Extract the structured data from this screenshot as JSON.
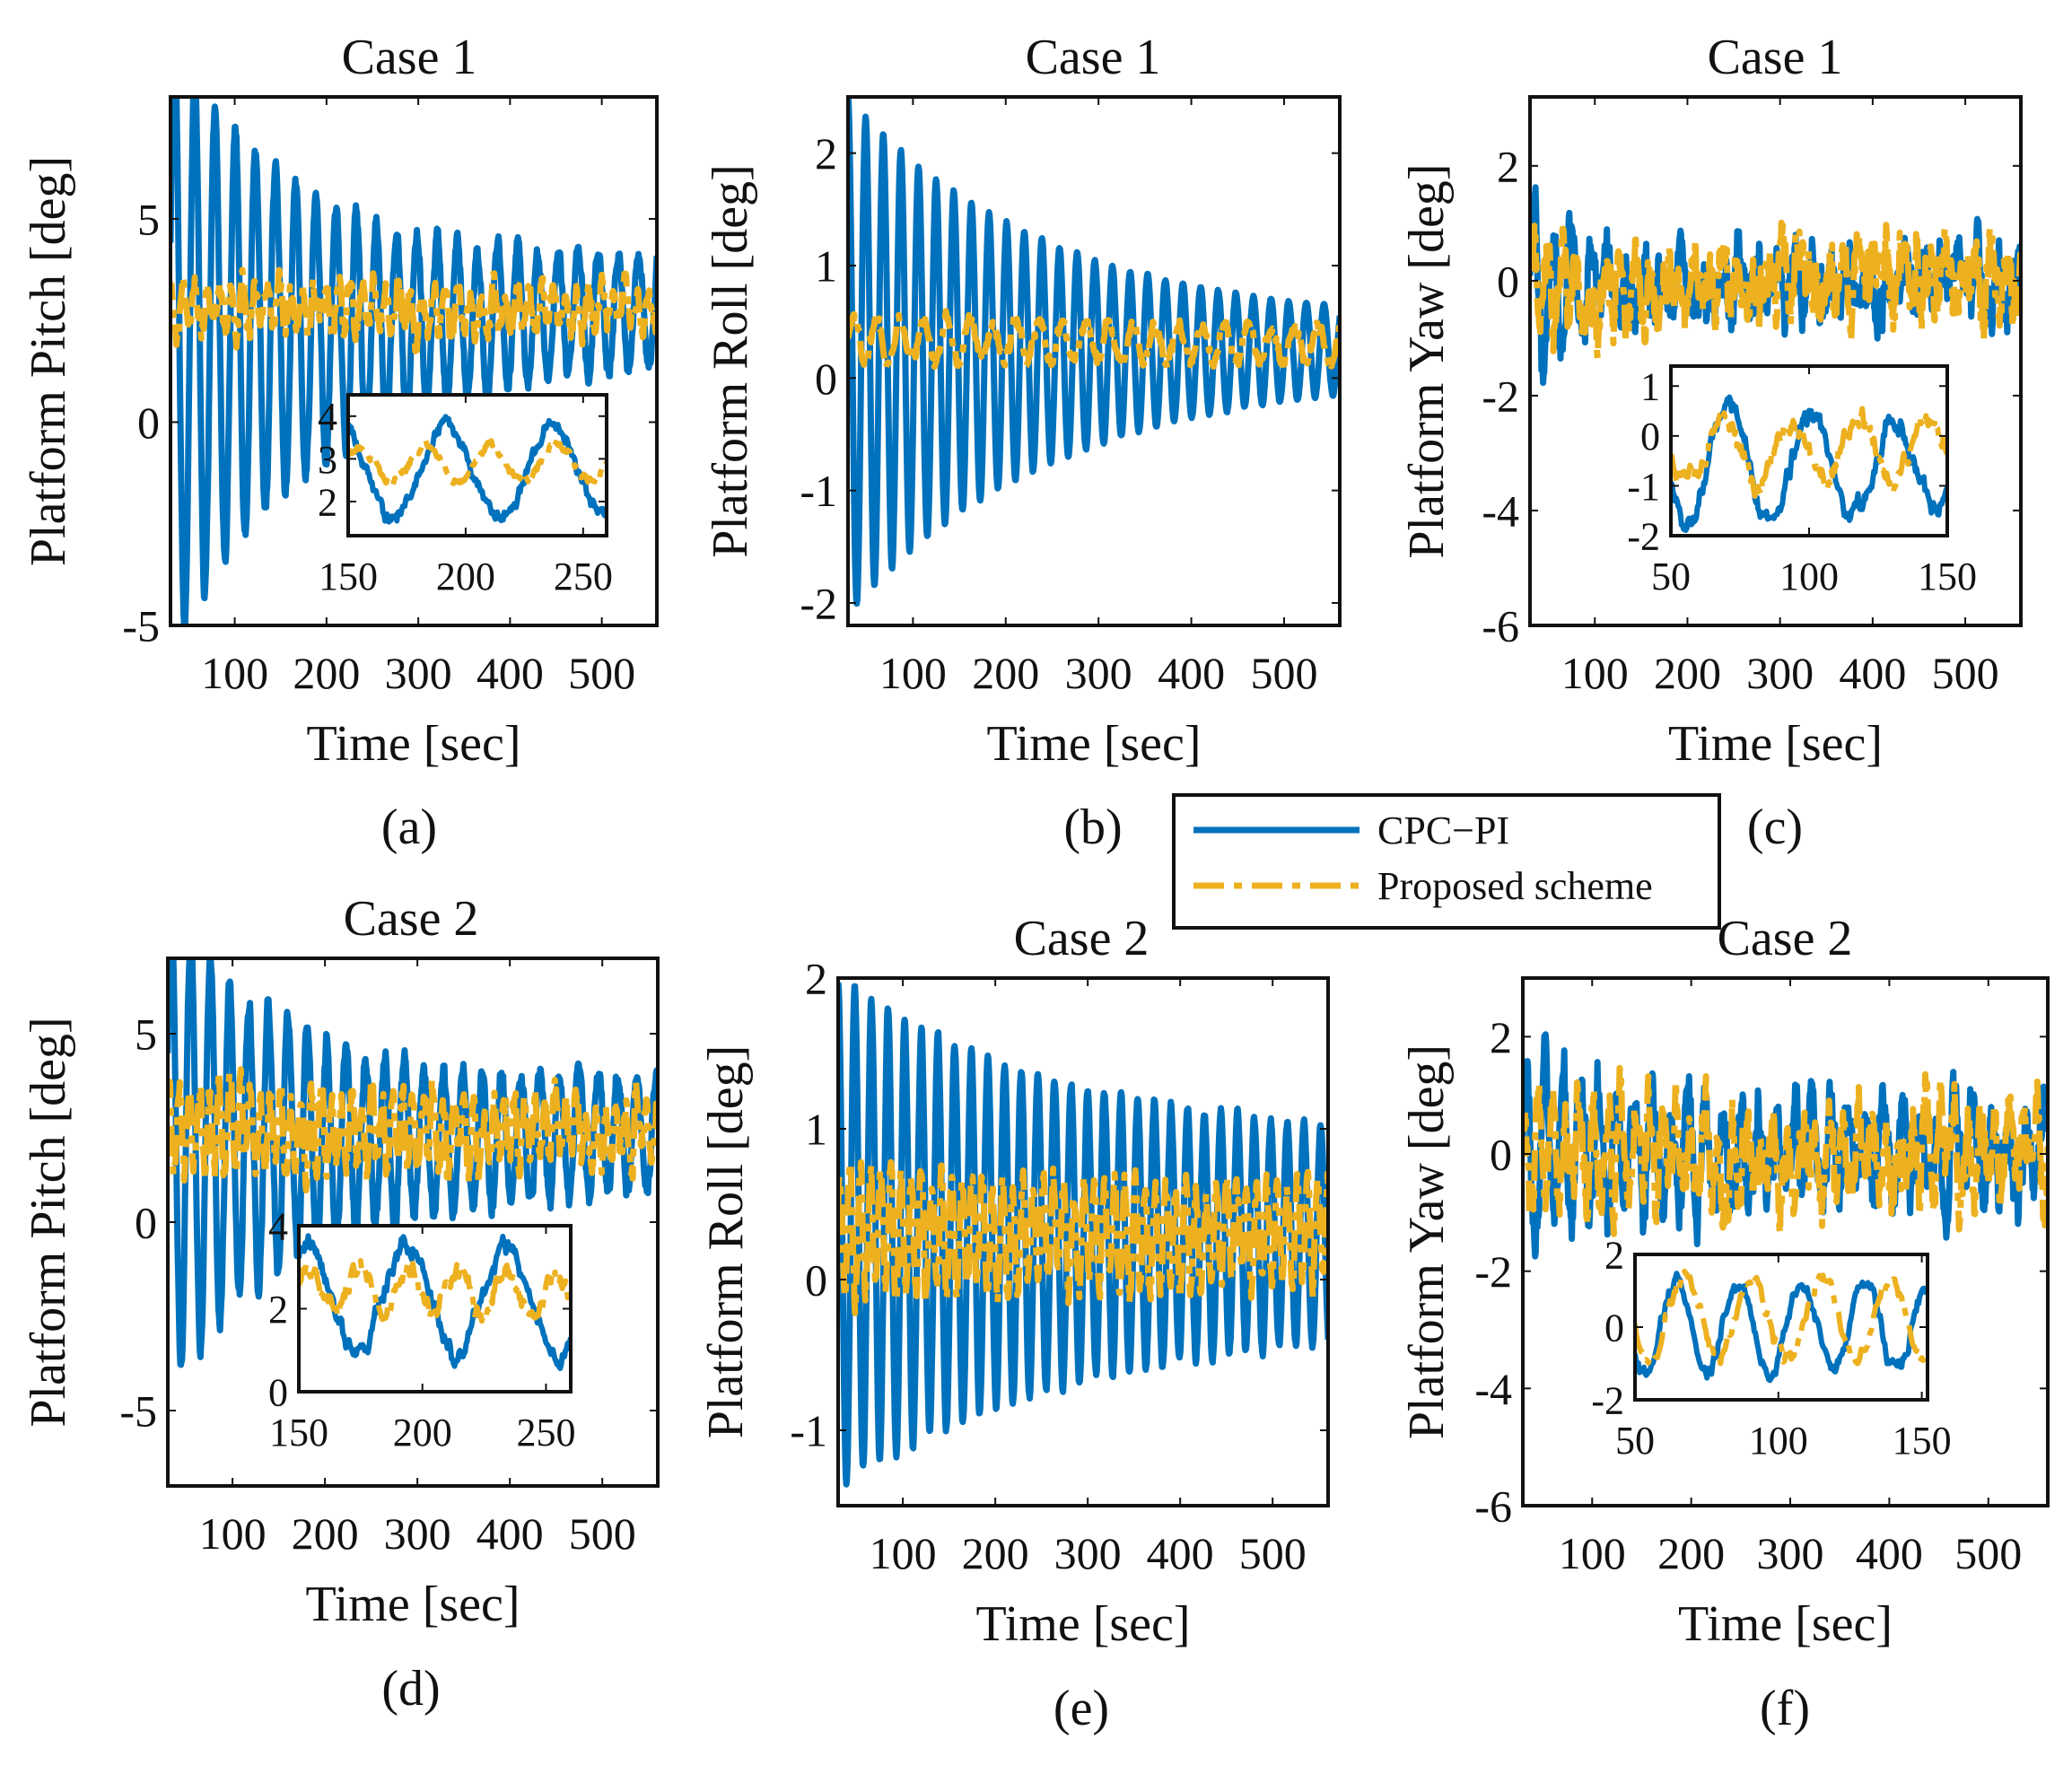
{
  "legend": {
    "entries": [
      {
        "label": "CPC−PI",
        "color": "#0072BD",
        "style": "solid"
      },
      {
        "label": "Proposed scheme",
        "color": "#EDB120",
        "style": "dashdot"
      }
    ]
  },
  "chart_data": [
    {
      "id": "a",
      "type": "line",
      "panel_label": "(a)",
      "title": "Case 1",
      "xlabel": "Time [sec]",
      "ylabel": "Platform Pitch [deg]",
      "xlim": [
        30,
        560
      ],
      "ylim": [
        -5,
        8
      ],
      "xticks": [
        100,
        200,
        300,
        400,
        500
      ],
      "yticks": [
        -5,
        0,
        5
      ],
      "series": [
        {
          "name": "CPC−PI",
          "gen": {
            "start": 2.0,
            "end": 2.8,
            "amp0": 7.5,
            "amp1": 1.2,
            "decay": 150,
            "period": 22,
            "noise": 0.35,
            "phase": 0.3,
            "seed": 11
          }
        },
        {
          "name": "Proposed scheme",
          "gen": {
            "start": 2.8,
            "end": 2.8,
            "amp0": 0.6,
            "amp1": 0.5,
            "decay": 200,
            "period": 13,
            "noise": 0.45,
            "phase": 1.1,
            "seed": 12
          }
        }
      ],
      "inset": {
        "xlim": [
          150,
          260
        ],
        "ylim": [
          1.2,
          4.5
        ],
        "xticks": [
          150,
          200,
          250
        ],
        "yticks": [
          2,
          3,
          4
        ],
        "series": [
          {
            "name": "CPC−PI",
            "gen": {
              "start": 2.7,
              "end": 2.7,
              "amp0": 1.1,
              "amp1": 1.1,
              "decay": 100,
              "period": 45,
              "noise": 0.25,
              "phase": 2.0,
              "seed": 13
            }
          },
          {
            "name": "Proposed scheme",
            "gen": {
              "start": 2.9,
              "end": 2.9,
              "amp0": 0.4,
              "amp1": 0.4,
              "decay": 100,
              "period": 28,
              "noise": 0.15,
              "phase": 0.5,
              "seed": 14
            }
          }
        ]
      }
    },
    {
      "id": "b",
      "type": "line",
      "panel_label": "(b)",
      "title": "Case 1",
      "xlabel": "Time [sec]",
      "ylabel": "Platform Roll [deg]",
      "xlim": [
        30,
        560
      ],
      "ylim": [
        -2.2,
        2.5
      ],
      "xticks": [
        100,
        200,
        300,
        400,
        500
      ],
      "yticks": [
        -2,
        -1,
        0,
        1,
        2
      ],
      "series": [
        {
          "name": "CPC−PI",
          "gen": {
            "start": 0.2,
            "end": 0.25,
            "amp0": 2.3,
            "amp1": 0.2,
            "decay": 220,
            "period": 19,
            "noise": 0.02,
            "phase": 1.57,
            "seed": 21
          }
        },
        {
          "name": "Proposed scheme",
          "gen": {
            "start": 0.35,
            "end": 0.3,
            "amp0": 0.2,
            "amp1": 0.15,
            "decay": 200,
            "period": 25,
            "noise": 0.08,
            "phase": 0.0,
            "seed": 22
          }
        }
      ]
    },
    {
      "id": "c",
      "type": "line",
      "panel_label": "(c)",
      "title": "Case 1",
      "xlabel": "Time [sec]",
      "ylabel": "Platform Yaw [deg]",
      "xlim": [
        30,
        560
      ],
      "ylim": [
        -6,
        3.2
      ],
      "xticks": [
        100,
        200,
        300,
        400,
        500
      ],
      "yticks": [
        -6,
        -4,
        -2,
        0,
        2
      ],
      "series": [
        {
          "name": "CPC−PI",
          "gen": {
            "start": -0.2,
            "end": 0.0,
            "amp0": 2.0,
            "amp1": 0.3,
            "decay": 30,
            "period": 20,
            "noise": 0.75,
            "phase": 0.0,
            "seed": 31
          }
        },
        {
          "name": "Proposed scheme",
          "gen": {
            "start": -0.1,
            "end": 0.1,
            "amp0": 0.5,
            "amp1": 0.3,
            "decay": 60,
            "period": 16,
            "noise": 0.8,
            "phase": 0.7,
            "seed": 32
          }
        }
      ],
      "inset": {
        "xlim": [
          50,
          150
        ],
        "ylim": [
          -2,
          1.4
        ],
        "xticks": [
          50,
          100,
          150
        ],
        "yticks": [
          -2,
          -1,
          0,
          1
        ],
        "series": [
          {
            "name": "CPC−PI",
            "gen": {
              "start": -0.6,
              "end": -0.6,
              "amp0": 1.2,
              "amp1": 0.7,
              "decay": 100,
              "period": 30,
              "noise": 0.3,
              "phase": 3.5,
              "seed": 33
            }
          },
          {
            "name": "Proposed scheme",
            "gen": {
              "start": -0.3,
              "end": -0.3,
              "amp0": 0.6,
              "amp1": 0.6,
              "decay": 100,
              "period": 25,
              "noise": 0.3,
              "phase": 3.2,
              "seed": 34
            }
          }
        ]
      }
    },
    {
      "id": "d",
      "type": "line",
      "panel_label": "(d)",
      "title": "Case 2",
      "xlabel": "Time [sec]",
      "ylabel": "Platform Pitch [deg]",
      "xlim": [
        30,
        560
      ],
      "ylim": [
        -7,
        7
      ],
      "xticks": [
        100,
        200,
        300,
        400,
        500
      ],
      "yticks": [
        -5,
        0,
        5
      ],
      "series": [
        {
          "name": "CPC−PI",
          "gen": {
            "start": 2.0,
            "end": 2.3,
            "amp0": 6.5,
            "amp1": 1.5,
            "decay": 120,
            "period": 21,
            "noise": 0.45,
            "phase": 0.4,
            "seed": 41
          }
        },
        {
          "name": "Proposed scheme",
          "gen": {
            "start": 2.4,
            "end": 2.4,
            "amp0": 1.2,
            "amp1": 0.7,
            "decay": 200,
            "period": 11,
            "noise": 0.7,
            "phase": 1.0,
            "seed": 42
          }
        }
      ],
      "inset": {
        "xlim": [
          150,
          260
        ],
        "ylim": [
          0,
          4
        ],
        "xticks": [
          150,
          200,
          250
        ],
        "yticks": [
          0,
          2,
          4
        ],
        "series": [
          {
            "name": "CPC−PI",
            "gen": {
              "start": 2.2,
              "end": 2.2,
              "amp0": 1.3,
              "amp1": 1.3,
              "decay": 100,
              "period": 40,
              "noise": 0.35,
              "phase": 1.0,
              "seed": 43
            }
          },
          {
            "name": "Proposed scheme",
            "gen": {
              "start": 2.4,
              "end": 2.4,
              "amp0": 0.5,
              "amp1": 0.5,
              "decay": 100,
              "period": 20,
              "noise": 0.35,
              "phase": 0.2,
              "seed": 44
            }
          }
        ]
      }
    },
    {
      "id": "e",
      "type": "line",
      "panel_label": "(e)",
      "title": "Case 2",
      "xlabel": "Time [sec]",
      "ylabel": "Platform Roll [deg]",
      "xlim": [
        30,
        560
      ],
      "ylim": [
        -1.5,
        2
      ],
      "xticks": [
        100,
        200,
        300,
        400,
        500
      ],
      "yticks": [
        -1,
        0,
        1,
        2
      ],
      "series": [
        {
          "name": "CPC−PI",
          "gen": {
            "start": 0.3,
            "end": 0.3,
            "amp0": 1.7,
            "amp1": 0.6,
            "decay": 250,
            "period": 18,
            "noise": 0.05,
            "phase": 1.57,
            "seed": 51
          }
        },
        {
          "name": "Proposed scheme",
          "gen": {
            "start": 0.3,
            "end": 0.3,
            "amp0": 0.45,
            "amp1": 0.3,
            "decay": 200,
            "period": 11,
            "noise": 0.15,
            "phase": 0.5,
            "seed": 52
          }
        }
      ]
    },
    {
      "id": "f",
      "type": "line",
      "panel_label": "(f)",
      "title": "Case 2",
      "xlabel": "Time [sec]",
      "ylabel": "Platform Yaw [deg]",
      "xlim": [
        30,
        560
      ],
      "ylim": [
        -6,
        3
      ],
      "xticks": [
        100,
        200,
        300,
        400,
        500
      ],
      "yticks": [
        -6,
        -4,
        -2,
        0,
        2
      ],
      "series": [
        {
          "name": "CPC−PI",
          "gen": {
            "start": 0.0,
            "end": 0.0,
            "amp0": 1.5,
            "amp1": 0.6,
            "decay": 100,
            "period": 18,
            "noise": 0.8,
            "phase": 0.0,
            "seed": 61
          }
        },
        {
          "name": "Proposed scheme",
          "gen": {
            "start": 0.0,
            "end": 0.0,
            "amp0": 0.8,
            "amp1": 0.5,
            "decay": 100,
            "period": 14,
            "noise": 0.85,
            "phase": 0.9,
            "seed": 62
          }
        }
      ],
      "inset": {
        "xlim": [
          50,
          152
        ],
        "ylim": [
          -2,
          2
        ],
        "xticks": [
          50,
          100,
          150
        ],
        "yticks": [
          -2,
          0,
          2
        ],
        "series": [
          {
            "name": "CPC−PI",
            "gen": {
              "start": 0.0,
              "end": 0.0,
              "amp0": 1.3,
              "amp1": 1.1,
              "decay": 100,
              "period": 22,
              "noise": 0.3,
              "phase": 3.8,
              "seed": 63
            }
          },
          {
            "name": "Proposed scheme",
            "gen": {
              "start": 0.2,
              "end": 0.2,
              "amp0": 1.1,
              "amp1": 1.1,
              "decay": 100,
              "period": 24,
              "noise": 0.3,
              "phase": 3.4,
              "seed": 64
            }
          }
        ]
      }
    }
  ]
}
